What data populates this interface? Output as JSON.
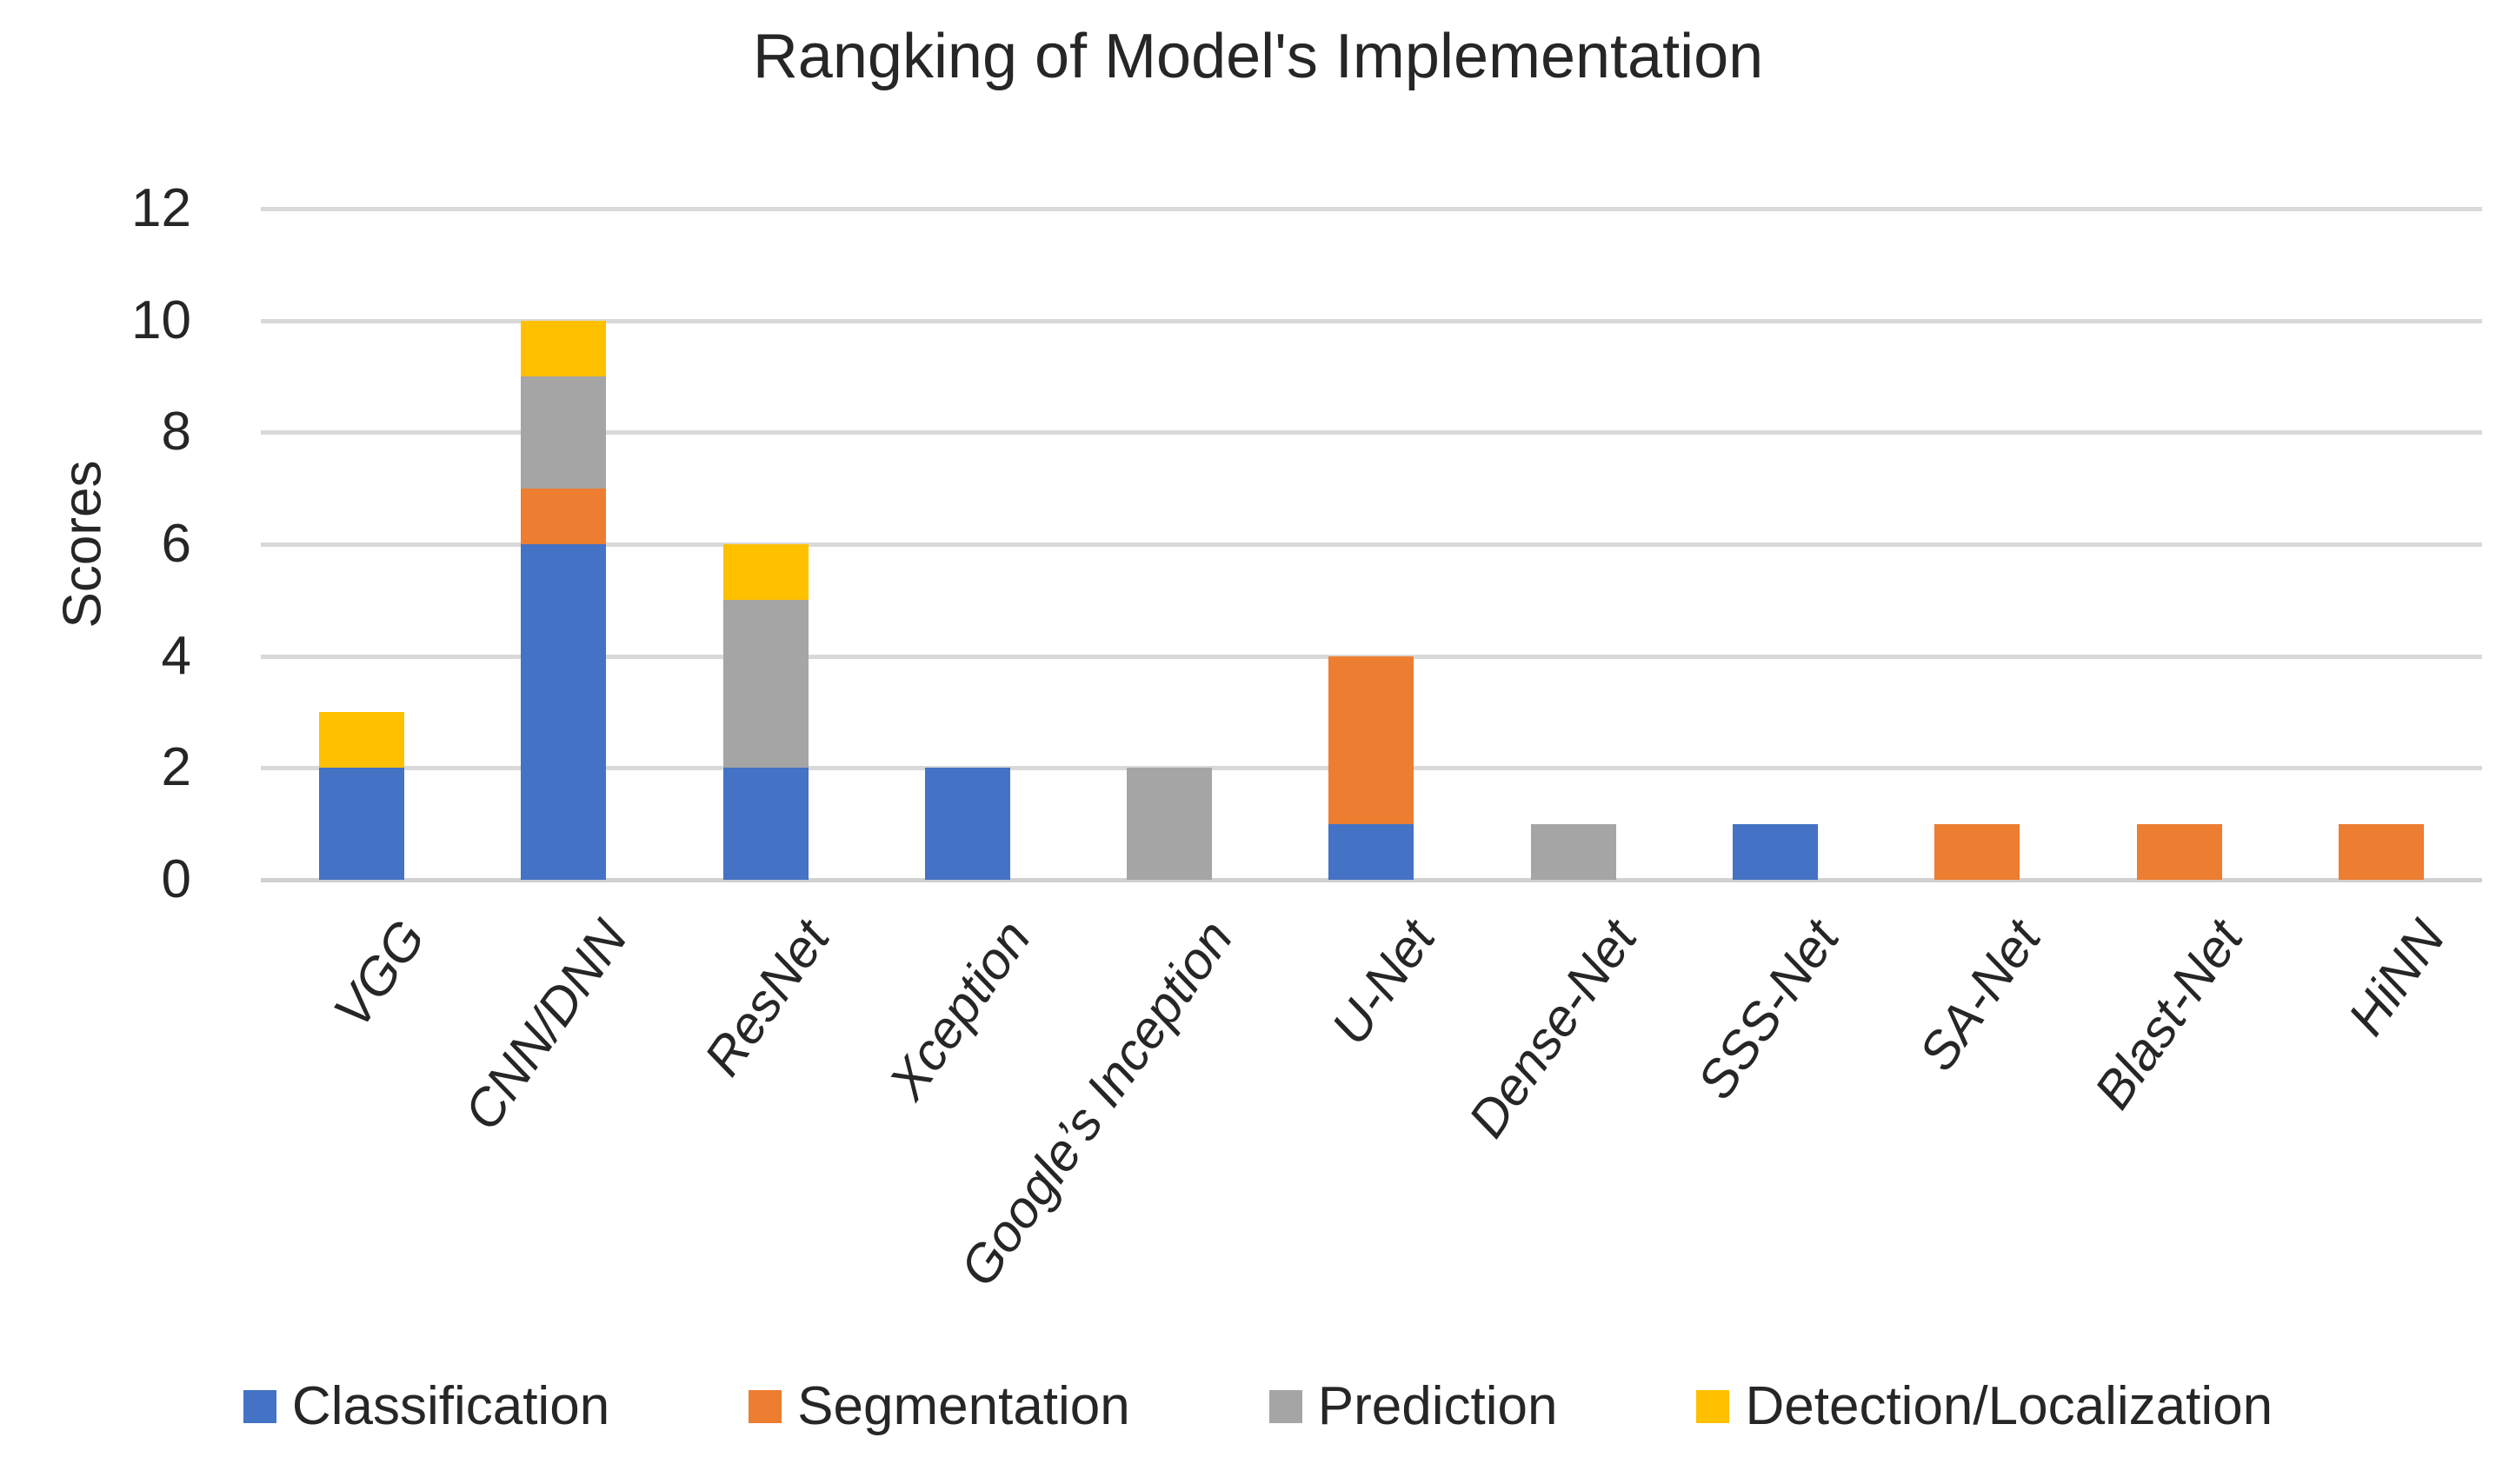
{
  "page": {
    "background": "#ffffff"
  },
  "styles": {
    "gridline_color": "#D9D9D9",
    "baseline_color": "#D0D0D0",
    "text_color": "#262626"
  },
  "chart_data": {
    "type": "bar",
    "stacked": true,
    "title": "Rangking of Model's Implementation",
    "xlabel": "",
    "ylabel": "Scores",
    "ylim": [
      0,
      12
    ],
    "yticks": [
      0,
      2,
      4,
      6,
      8,
      10,
      12
    ],
    "grid": true,
    "legend_position": "bottom",
    "categories": [
      "VGG",
      "CNN/DNN",
      "ResNet",
      "Xception",
      "Google’s Inception",
      "U-Net",
      "Dense-Net",
      "SSS-Net",
      "SA-Net",
      "Blast-Net",
      "HiNN"
    ],
    "series": [
      {
        "name": "Classification",
        "color": "#4472C4",
        "values": [
          2,
          6,
          2,
          2,
          0,
          1,
          0,
          1,
          0,
          0,
          0
        ]
      },
      {
        "name": "Segmentation",
        "color": "#ED7D31",
        "values": [
          0,
          1,
          0,
          0,
          0,
          3,
          0,
          0,
          1,
          1,
          1
        ]
      },
      {
        "name": "Prediction",
        "color": "#A5A5A5",
        "values": [
          0,
          2,
          3,
          0,
          2,
          0,
          1,
          0,
          0,
          0,
          0
        ]
      },
      {
        "name": "Detection/Localization",
        "color": "#FFC000",
        "values": [
          1,
          1,
          1,
          0,
          0,
          0,
          0,
          0,
          0,
          0,
          0
        ]
      }
    ],
    "totals": [
      3,
      10,
      6,
      2,
      2,
      4,
      1,
      1,
      1,
      1,
      1
    ]
  }
}
